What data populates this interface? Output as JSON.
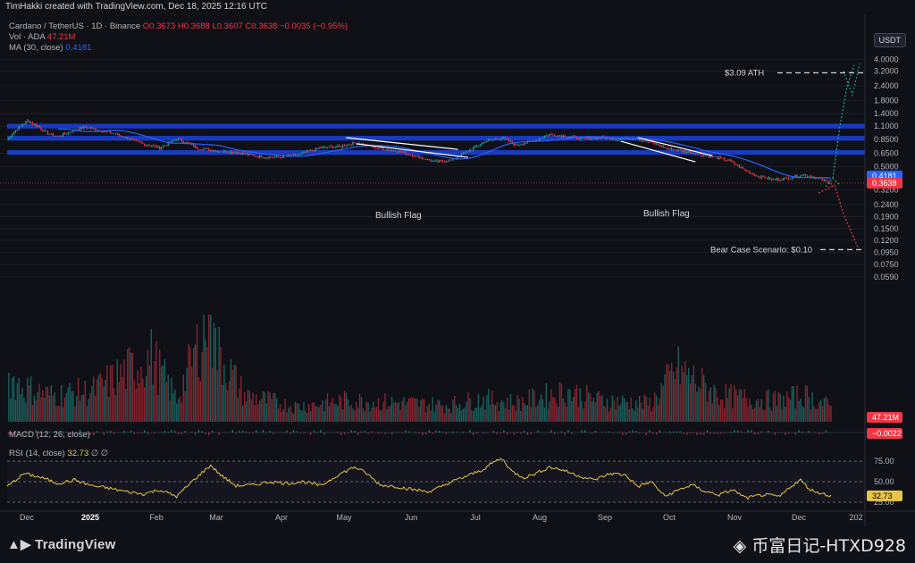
{
  "header": {
    "credit": "TimHakki created with TradingView.com, Dec 18, 2025 12:16 UTC"
  },
  "legend": {
    "symbol": "Cardano / TetherUS · 1D · Binance",
    "ohlc": "O0.3673  H0.3688  L0.3607  C0.3638  −0.0035 (−0.95%)",
    "vol_label": "Vol · ADA",
    "vol_value": "47.21M",
    "ma_label": "MA (30, close)",
    "ma_value": "0.4181",
    "macd_label": "MACD (12, 26, close)",
    "rsi_label": "RSI (14, close)",
    "rsi_value": "32.73",
    "rsi_suffix": "∅ ∅"
  },
  "currency_button": "USDT",
  "footer": {
    "brand": "TradingView",
    "watermark": "币富日记-HTXD928"
  },
  "colors": {
    "up": "#26a69a",
    "down": "#f23645",
    "ma": "#2962ff",
    "zone": "#1a3fd1",
    "rsi": "#e7c549",
    "bg": "#0f1117"
  },
  "chart_data": {
    "type": "candlestick",
    "scale": "log",
    "price_axis_ticks": [
      "4.0000",
      "3.2000",
      "2.4000",
      "1.8000",
      "1.4000",
      "1.1000",
      "0.8500",
      "0.6500",
      "0.5000",
      "0.3200",
      "0.2400",
      "0.1900",
      "0.1500",
      "0.1200",
      "0.0950",
      "0.0750",
      "0.0590"
    ],
    "time_axis_ticks": [
      "Dec",
      "2025",
      "Feb",
      "Mar",
      "Apr",
      "May",
      "Jun",
      "Jul",
      "Aug",
      "Sep",
      "Oct",
      "Nov",
      "Dec",
      "202"
    ],
    "price_labels": {
      "ma": "0.4181",
      "last": "0.3638",
      "volume": "47.21M",
      "macd": "−0.0022",
      "rsi": "32.73"
    },
    "rsi_levels": [
      "75.00",
      "50.00",
      "25.00"
    ],
    "zones": [
      [
        1.05,
        1.15
      ],
      [
        0.83,
        0.91
      ],
      [
        0.63,
        0.69
      ]
    ],
    "annotations": {
      "flag_1": "Bullish Flag",
      "flag_2": "Bullish Flag",
      "ath": "$3.09 ATH",
      "bear": "Bear Case Scenario: $0.10"
    },
    "targets": {
      "ath": 3.09,
      "bear": 0.1
    },
    "anchors": [
      [
        0,
        0.85
      ],
      [
        6,
        1.05
      ],
      [
        12,
        1.22
      ],
      [
        18,
        1.1
      ],
      [
        24,
        0.95
      ],
      [
        30,
        0.9
      ],
      [
        38,
        1.0
      ],
      [
        46,
        1.08
      ],
      [
        54,
        1.02
      ],
      [
        62,
        0.96
      ],
      [
        70,
        0.88
      ],
      [
        80,
        0.78
      ],
      [
        90,
        0.72
      ],
      [
        100,
        0.86
      ],
      [
        106,
        0.8
      ],
      [
        112,
        0.72
      ],
      [
        124,
        0.68
      ],
      [
        136,
        0.66
      ],
      [
        148,
        0.61
      ],
      [
        160,
        0.6
      ],
      [
        172,
        0.63
      ],
      [
        184,
        0.72
      ],
      [
        196,
        0.74
      ],
      [
        206,
        0.8
      ],
      [
        218,
        0.72
      ],
      [
        230,
        0.68
      ],
      [
        242,
        0.61
      ],
      [
        252,
        0.55
      ],
      [
        262,
        0.57
      ],
      [
        272,
        0.68
      ],
      [
        282,
        0.82
      ],
      [
        292,
        0.88
      ],
      [
        300,
        0.76
      ],
      [
        310,
        0.82
      ],
      [
        320,
        0.94
      ],
      [
        330,
        0.9
      ],
      [
        340,
        0.86
      ],
      [
        350,
        0.88
      ],
      [
        360,
        0.86
      ],
      [
        370,
        0.87
      ],
      [
        380,
        0.8
      ],
      [
        388,
        0.72
      ],
      [
        398,
        0.68
      ],
      [
        408,
        0.64
      ],
      [
        418,
        0.6
      ],
      [
        426,
        0.56
      ],
      [
        434,
        0.48
      ],
      [
        442,
        0.42
      ],
      [
        452,
        0.39
      ],
      [
        460,
        0.4
      ],
      [
        470,
        0.43
      ],
      [
        478,
        0.4
      ],
      [
        486,
        0.3638
      ]
    ],
    "volume": [
      [
        0,
        60
      ],
      [
        10,
        45
      ],
      [
        25,
        35
      ],
      [
        50,
        40
      ],
      [
        85,
        85
      ],
      [
        100,
        30
      ],
      [
        120,
        140
      ],
      [
        122,
        100
      ],
      [
        140,
        35
      ],
      [
        170,
        20
      ],
      [
        200,
        28
      ],
      [
        230,
        25
      ],
      [
        260,
        22
      ],
      [
        280,
        30
      ],
      [
        300,
        25
      ],
      [
        330,
        40
      ],
      [
        350,
        28
      ],
      [
        380,
        24
      ],
      [
        395,
        70
      ],
      [
        420,
        35
      ],
      [
        440,
        30
      ],
      [
        455,
        28
      ],
      [
        470,
        35
      ],
      [
        486,
        20
      ]
    ],
    "rsi": [
      [
        0,
        44
      ],
      [
        10,
        60
      ],
      [
        20,
        55
      ],
      [
        30,
        48
      ],
      [
        40,
        52
      ],
      [
        50,
        45
      ],
      [
        60,
        42
      ],
      [
        70,
        38
      ],
      [
        80,
        35
      ],
      [
        90,
        40
      ],
      [
        100,
        32
      ],
      [
        110,
        52
      ],
      [
        120,
        70
      ],
      [
        126,
        58
      ],
      [
        135,
        45
      ],
      [
        145,
        46
      ],
      [
        155,
        50
      ],
      [
        165,
        48
      ],
      [
        175,
        50
      ],
      [
        185,
        45
      ],
      [
        195,
        58
      ],
      [
        205,
        68
      ],
      [
        212,
        60
      ],
      [
        220,
        46
      ],
      [
        230,
        44
      ],
      [
        240,
        40
      ],
      [
        250,
        38
      ],
      [
        260,
        48
      ],
      [
        270,
        56
      ],
      [
        280,
        64
      ],
      [
        288,
        75
      ],
      [
        292,
        78
      ],
      [
        298,
        62
      ],
      [
        305,
        55
      ],
      [
        312,
        60
      ],
      [
        320,
        68
      ],
      [
        328,
        64
      ],
      [
        336,
        58
      ],
      [
        346,
        52
      ],
      [
        356,
        60
      ],
      [
        365,
        58
      ],
      [
        372,
        44
      ],
      [
        380,
        50
      ],
      [
        388,
        32
      ],
      [
        396,
        40
      ],
      [
        404,
        46
      ],
      [
        412,
        38
      ],
      [
        420,
        34
      ],
      [
        428,
        40
      ],
      [
        436,
        30
      ],
      [
        446,
        34
      ],
      [
        456,
        32
      ],
      [
        462,
        44
      ],
      [
        468,
        52
      ],
      [
        474,
        40
      ],
      [
        480,
        36
      ],
      [
        486,
        32.73
      ]
    ]
  }
}
